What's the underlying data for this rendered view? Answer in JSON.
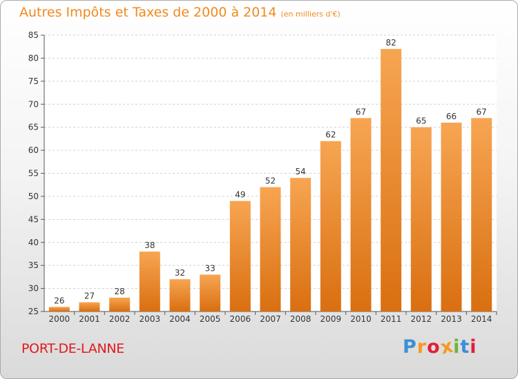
{
  "title": {
    "main": "Autres Impôts et Taxes de 2000 à 2014",
    "unit": "(en milliers d'€)"
  },
  "town": "PORT-DE-LANNE",
  "logo": {
    "text": "Proxiti"
  },
  "colors": {
    "bar_top": "#f7a552",
    "bar_bottom": "#d96f10",
    "title": "#f08a1e",
    "town": "#e1191e"
  },
  "chart_data": {
    "type": "bar",
    "title": "Autres Impôts et Taxes de 2000 à 2014",
    "ylabel": "(en milliers d'€)",
    "categories": [
      "2000",
      "2001",
      "2002",
      "2003",
      "2004",
      "2005",
      "2006",
      "2007",
      "2008",
      "2009",
      "2010",
      "2011",
      "2012",
      "2013",
      "2014"
    ],
    "values": [
      26,
      27,
      28,
      38,
      32,
      33,
      49,
      52,
      54,
      62,
      67,
      82,
      65,
      66,
      67
    ],
    "ylim": [
      25,
      85
    ],
    "yticks": [
      25,
      30,
      35,
      40,
      45,
      50,
      55,
      60,
      65,
      70,
      75,
      80,
      85
    ],
    "grid": true,
    "data_labels": true
  }
}
